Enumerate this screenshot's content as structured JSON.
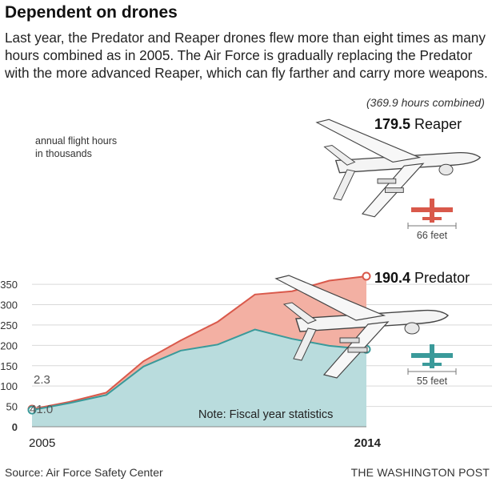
{
  "header": {
    "title": "Dependent on drones",
    "subtitle": "Last year, the Predator and Reaper drones flew more than eight times as many hours combined as in 2005. The Air Force is gradually replacing the Predator with the more advanced Reaper, which can fly farther and carry more weapons."
  },
  "combined_note": "(369.9 hours combined)",
  "colors": {
    "reaper": "#d9594b",
    "reaper_fill": "#f3b0a3",
    "predator": "#3a9a9a",
    "predator_fill": "#b9dcdd",
    "grid": "#d9d9d9"
  },
  "chart_data": {
    "type": "area",
    "stacked": true,
    "ylabel": "annual flight hours\nin thousands",
    "x": [
      2005,
      2006,
      2007,
      2008,
      2009,
      2010,
      2011,
      2012,
      2013,
      2014
    ],
    "x_tick_labels": [
      "2005",
      "2014"
    ],
    "ylim": [
      0,
      370
    ],
    "y_ticks": [
      0,
      50,
      100,
      150,
      200,
      250,
      300,
      350
    ],
    "grid": true,
    "series": [
      {
        "name": "Predator",
        "values": [
          41.0,
          58,
          78,
          148,
          187,
          202,
          239,
          216,
          199,
          190.4
        ]
      },
      {
        "name": "Reaper",
        "values": [
          2.3,
          3,
          6,
          13,
          25,
          56,
          86,
          117,
          160,
          179.5
        ]
      }
    ],
    "annotations": {
      "start_reaper": "2.3",
      "start_predator": "41.0",
      "end_reaper_value": "179.5",
      "end_reaper_name": "Reaper",
      "end_predator_value": "190.4",
      "end_predator_name": "Predator",
      "note": "Note: Fiscal year statistics"
    }
  },
  "wingspans": {
    "reaper": "66 feet",
    "predator": "55 feet"
  },
  "footer": {
    "source": "Source: Air Force Safety Center",
    "credit": "THE WASHINGTON POST"
  }
}
